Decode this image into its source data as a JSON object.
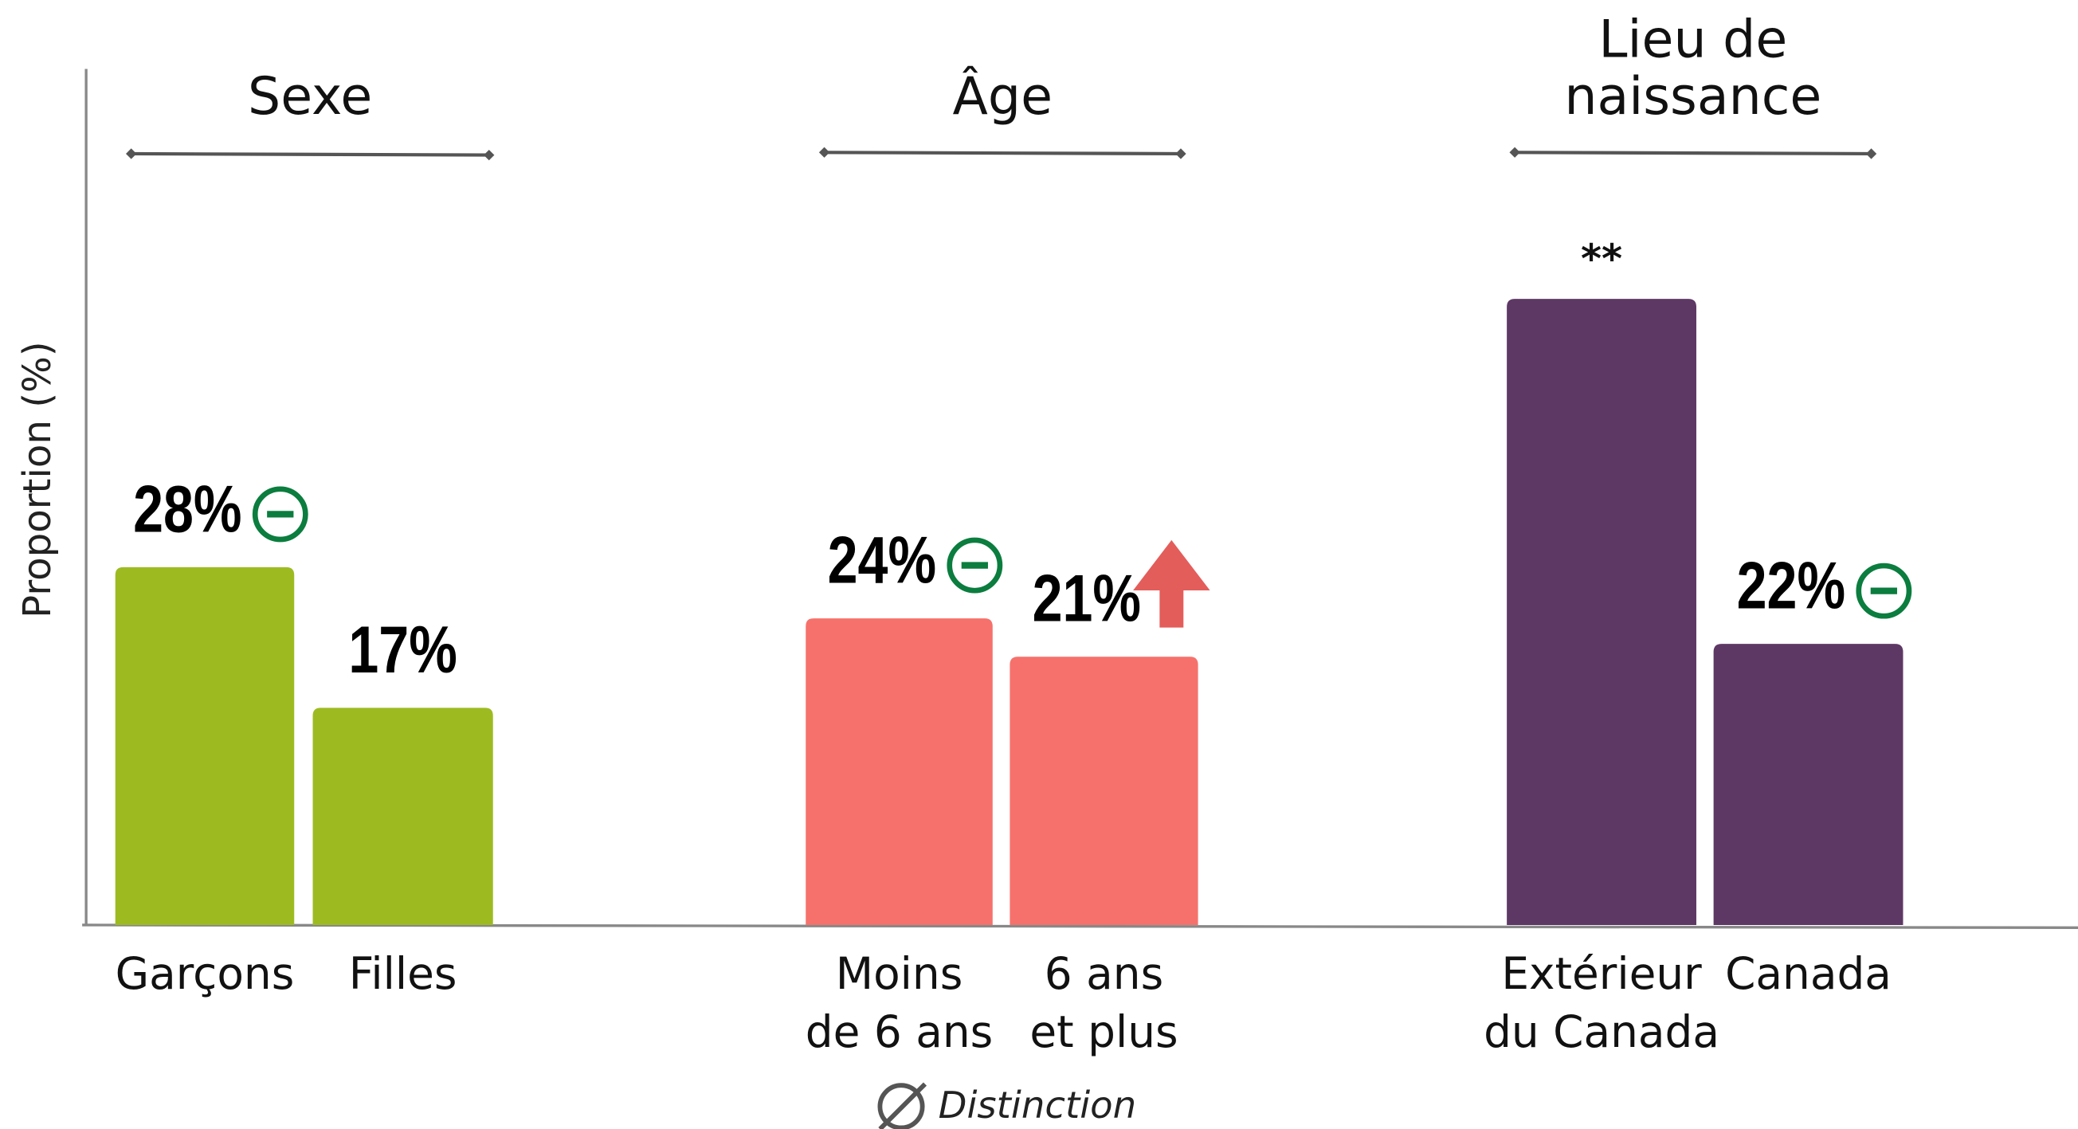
{
  "chart_data": {
    "type": "bar",
    "ylabel": "Proportion (%)",
    "group_titles": [
      "Sexe",
      "Âge",
      "Lieu de\nnaissance"
    ],
    "categories": [
      "Garçons",
      "Filles",
      "Moins\nde 6 ans",
      "6 ans\net plus",
      "Extérieur\ndu Canada",
      "Canada"
    ],
    "values": [
      28,
      17,
      24,
      21,
      49,
      22
    ],
    "value_labels": [
      "28%",
      "17%",
      "24%",
      "21%",
      null,
      "22%"
    ],
    "reliability_flags": [
      null,
      null,
      null,
      null,
      "**",
      null
    ],
    "symbols": [
      "minus",
      null,
      "minus",
      "up",
      null,
      "minus"
    ],
    "colors": [
      "#9dbb21",
      "#9dbb21",
      "#f6716b",
      "#f6716b",
      "#5e3864",
      "#5e3864"
    ],
    "ylim": [
      0,
      67
    ],
    "legend": {
      "symbol": "distinction",
      "label": "Distinction"
    }
  }
}
